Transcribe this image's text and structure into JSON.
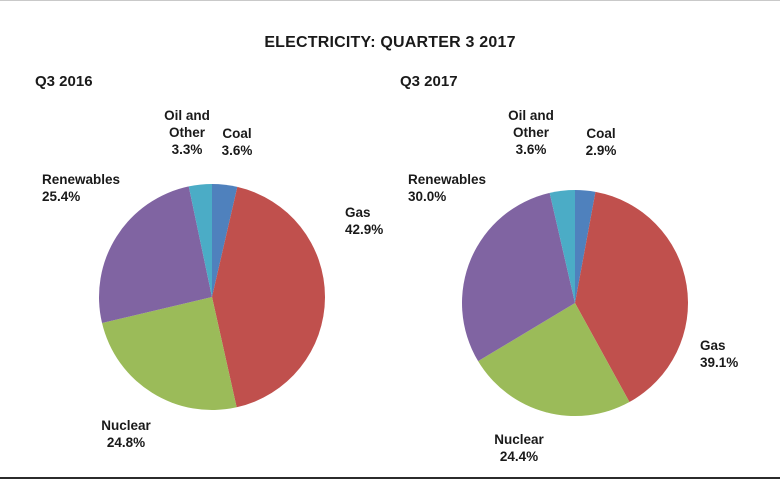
{
  "title": "ELECTRICITY: QUARTER 3 2017",
  "chart_data": [
    {
      "type": "pie",
      "title": "Q3 2016",
      "start_angle": "12 o'clock",
      "direction": "clockwise",
      "legend_position": "labels around pie",
      "slices": [
        {
          "label": "Coal",
          "value": 3.6,
          "pct": "3.6%",
          "color": "#4f81bd"
        },
        {
          "label": "Gas",
          "value": 42.9,
          "pct": "42.9%",
          "color": "#c0504d"
        },
        {
          "label": "Nuclear",
          "value": 24.8,
          "pct": "24.8%",
          "color": "#9bbb59"
        },
        {
          "label": "Renewables",
          "value": 25.4,
          "pct": "25.4%",
          "color": "#8064a2"
        },
        {
          "label": "Oil and Other",
          "value": 3.3,
          "pct": "3.3%",
          "color": "#4bacc6"
        }
      ]
    },
    {
      "type": "pie",
      "title": "Q3 2017",
      "start_angle": "12 o'clock",
      "direction": "clockwise",
      "legend_position": "labels around pie",
      "slices": [
        {
          "label": "Coal",
          "value": 2.9,
          "pct": "2.9%",
          "color": "#4f81bd"
        },
        {
          "label": "Gas",
          "value": 39.1,
          "pct": "39.1%",
          "color": "#c0504d"
        },
        {
          "label": "Nuclear",
          "value": 24.4,
          "pct": "24.4%",
          "color": "#9bbb59"
        },
        {
          "label": "Renewables",
          "value": 30.0,
          "pct": "30.0%",
          "color": "#8064a2"
        },
        {
          "label": "Oil and Other",
          "value": 3.6,
          "pct": "3.6%",
          "color": "#4bacc6"
        }
      ]
    }
  ]
}
